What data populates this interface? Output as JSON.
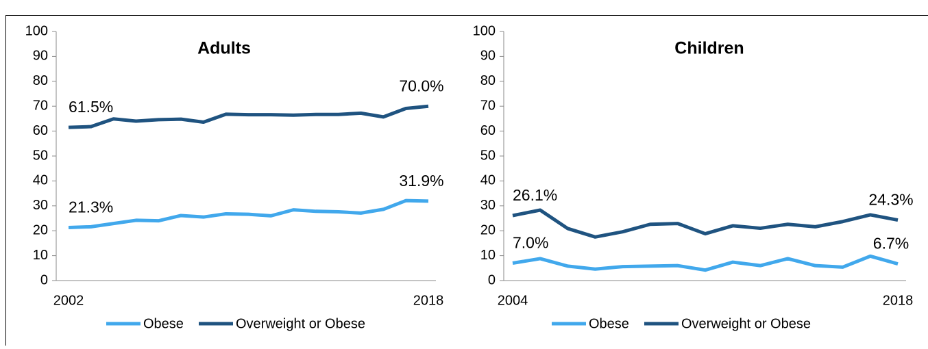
{
  "chart_data": [
    {
      "type": "line",
      "title": "Adults",
      "categories": [
        "2002",
        null,
        null,
        null,
        null,
        null,
        null,
        null,
        null,
        null,
        null,
        null,
        null,
        null,
        null,
        null,
        "2018"
      ],
      "series": [
        {
          "name": "Obese",
          "color": "#41a8ec",
          "values": [
            21.3,
            21.6,
            22.9,
            24.2,
            24.0,
            26.1,
            25.5,
            26.8,
            26.6,
            26.0,
            28.4,
            27.8,
            27.6,
            27.1,
            28.6,
            32.1,
            31.9
          ],
          "value_labels": [
            "21.3%",
            null,
            null,
            null,
            null,
            null,
            null,
            null,
            null,
            null,
            null,
            null,
            null,
            null,
            null,
            null,
            "31.9%"
          ]
        },
        {
          "name": "Overweight or Obese",
          "color": "#1f5380",
          "values": [
            61.5,
            61.8,
            64.9,
            64.0,
            64.6,
            64.8,
            63.6,
            66.8,
            66.6,
            66.6,
            66.4,
            66.7,
            66.7,
            67.2,
            65.7,
            69.1,
            70.0
          ],
          "value_labels": [
            "61.5%",
            null,
            null,
            null,
            null,
            null,
            null,
            null,
            null,
            null,
            null,
            null,
            null,
            null,
            null,
            null,
            "70.0%"
          ]
        }
      ],
      "ylim": [
        0,
        100
      ],
      "yticks": [
        0,
        10,
        20,
        30,
        40,
        50,
        60,
        70,
        80,
        90,
        100
      ],
      "legend": "bottom"
    },
    {
      "type": "line",
      "title": "Children",
      "categories": [
        "2004",
        null,
        null,
        null,
        null,
        null,
        null,
        null,
        null,
        null,
        null,
        null,
        null,
        null,
        "2018"
      ],
      "series": [
        {
          "name": "Obese",
          "color": "#41a8ec",
          "values": [
            7.0,
            8.8,
            5.8,
            4.6,
            5.6,
            5.8,
            6.0,
            4.2,
            7.4,
            6.0,
            8.8,
            6.0,
            5.4,
            9.8,
            6.7
          ],
          "value_labels": [
            "7.0%",
            null,
            null,
            null,
            null,
            null,
            null,
            null,
            null,
            null,
            null,
            null,
            null,
            null,
            "6.7%"
          ]
        },
        {
          "name": "Overweight or Obese",
          "color": "#1f5380",
          "values": [
            26.1,
            28.3,
            20.9,
            17.5,
            19.6,
            22.6,
            22.9,
            18.8,
            22.0,
            21.0,
            22.6,
            21.6,
            23.7,
            26.4,
            24.3
          ],
          "value_labels": [
            "26.1%",
            null,
            null,
            null,
            null,
            null,
            null,
            null,
            null,
            null,
            null,
            null,
            null,
            null,
            "24.3%"
          ]
        }
      ],
      "ylim": [
        0,
        100
      ],
      "yticks": [
        0,
        10,
        20,
        30,
        40,
        50,
        60,
        70,
        80,
        90,
        100
      ],
      "legend": "bottom"
    }
  ]
}
